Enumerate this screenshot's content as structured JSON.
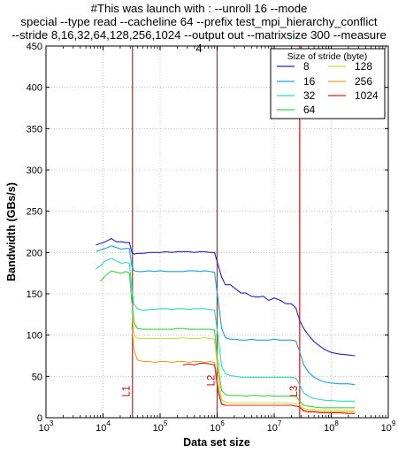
{
  "chart_data": {
    "type": "line",
    "title_lines": [
      "#This was launch with : --unroll 16 --mode",
      "special --type read --cacheline 64 --prefix test_mpi_hierarchy_conflict",
      "--stride 8,16,32,64,128,256,1024 --output out --matrixsize 300 --measure",
      "4"
    ],
    "xlabel": "Data set size",
    "ylabel": "Bandwidth (GBs/s)",
    "xscale": "log",
    "xlim": [
      1000,
      1000000000
    ],
    "ylim": [
      0,
      450
    ],
    "x_tick_exponents": [
      "3",
      "4",
      "5",
      "6",
      "7",
      "8",
      "9"
    ],
    "y_ticks": [
      "0",
      "50",
      "100",
      "150",
      "200",
      "250",
      "300",
      "350",
      "400",
      "450"
    ],
    "grid": true,
    "legend_title": "Size of stride (byte)",
    "legend_position": "top-right",
    "cache_lines": [
      {
        "label": "L1",
        "x": 32768
      },
      {
        "label": "L2",
        "x": 1000000
      },
      {
        "label": "L3",
        "x": 28000000
      }
    ],
    "series": [
      {
        "name": "8",
        "color": "#2222cc",
        "x": [
          7500,
          9000,
          11000,
          14000,
          17000,
          21000,
          25000,
          29000,
          32000,
          35000,
          40000,
          50000,
          65000,
          80000,
          100000,
          130000,
          160000,
          200000,
          250000,
          320000,
          400000,
          500000,
          600000,
          750000,
          900000,
          1050000,
          1200000,
          1400000,
          1700000,
          2100000,
          2600000,
          3200000,
          4000000,
          5000000,
          6500000,
          8000000,
          10000000,
          13000000,
          16000000,
          20000000,
          24000000,
          28000000,
          33000000,
          40000000,
          50000000,
          65000000,
          80000000,
          100000000,
          140000000,
          200000000,
          260000000
        ],
        "y": [
          209,
          211,
          213,
          217,
          213,
          213,
          212,
          212,
          200,
          198,
          199,
          199,
          200,
          200,
          200,
          201,
          200,
          201,
          201,
          201,
          200,
          201,
          201,
          200,
          200,
          184,
          170,
          161,
          161,
          156,
          151,
          151,
          147,
          146,
          147,
          142,
          145,
          142,
          138,
          138,
          133,
          118,
          108,
          100,
          92,
          86,
          82,
          79,
          77,
          76,
          75
        ]
      },
      {
        "name": "16",
        "color": "#1ea0e0",
        "x": [
          7500,
          9000,
          11000,
          14000,
          17000,
          21000,
          25000,
          29000,
          32000,
          35000,
          40000,
          50000,
          65000,
          80000,
          100000,
          130000,
          160000,
          200000,
          250000,
          320000,
          400000,
          500000,
          600000,
          750000,
          900000,
          1050000,
          1200000,
          1400000,
          1700000,
          2100000,
          2600000,
          3200000,
          4000000,
          5000000,
          6500000,
          8000000,
          10000000,
          13000000,
          16000000,
          20000000,
          24000000,
          28000000,
          33000000,
          40000000,
          50000000,
          65000000,
          80000000,
          100000000,
          140000000,
          200000000,
          260000000
        ],
        "y": [
          201,
          203,
          205,
          208,
          206,
          204,
          205,
          205,
          183,
          178,
          177,
          177,
          178,
          177,
          178,
          177,
          177,
          177,
          177,
          178,
          178,
          177,
          178,
          177,
          176,
          140,
          108,
          97,
          95,
          95,
          94,
          94,
          95,
          94,
          94,
          94,
          95,
          94,
          94,
          94,
          93,
          80,
          64,
          55,
          49,
          45,
          43,
          42,
          41,
          41,
          40
        ]
      },
      {
        "name": "32",
        "color": "#2ee0b0",
        "x": [
          7500,
          9000,
          11000,
          14000,
          17000,
          21000,
          25000,
          29000,
          32000,
          35000,
          40000,
          50000,
          65000,
          80000,
          100000,
          130000,
          160000,
          200000,
          250000,
          320000,
          400000,
          500000,
          600000,
          750000,
          900000,
          1050000,
          1200000,
          1400000,
          1700000,
          2100000,
          2600000,
          3200000,
          4000000,
          5000000,
          6500000,
          8000000,
          10000000,
          13000000,
          16000000,
          20000000,
          24000000,
          28000000,
          33000000,
          40000000,
          50000000,
          65000000,
          80000000,
          100000000,
          140000000,
          200000000,
          260000000
        ],
        "y": [
          180,
          184,
          190,
          193,
          190,
          187,
          188,
          187,
          155,
          137,
          132,
          130,
          131,
          131,
          132,
          132,
          131,
          132,
          132,
          131,
          132,
          132,
          132,
          131,
          130,
          95,
          62,
          53,
          51,
          50,
          49,
          49,
          49,
          49,
          49,
          49,
          49,
          49,
          49,
          49,
          48,
          40,
          30,
          26,
          23,
          22,
          21,
          21,
          20,
          20,
          20
        ]
      },
      {
        "name": "64",
        "color": "#3cd43c",
        "x": [
          9000,
          11000,
          14000,
          17000,
          21000,
          25000,
          29000,
          32000,
          35000,
          40000,
          50000,
          65000,
          80000,
          100000,
          130000,
          160000,
          200000,
          250000,
          320000,
          400000,
          500000,
          600000,
          750000,
          900000,
          1050000,
          1200000,
          1400000,
          1700000,
          2100000,
          2600000,
          3200000,
          4000000,
          5000000,
          6500000,
          8000000,
          10000000,
          13000000,
          16000000,
          20000000,
          24000000,
          28000000,
          33000000,
          40000000,
          50000000,
          65000000,
          80000000,
          100000000,
          140000000,
          200000000,
          260000000
        ],
        "y": [
          165,
          172,
          178,
          176,
          175,
          177,
          175,
          140,
          115,
          108,
          107,
          107,
          107,
          107,
          107,
          107,
          108,
          108,
          107,
          107,
          107,
          107,
          107,
          106,
          60,
          33,
          28,
          27,
          27,
          27,
          26,
          27,
          27,
          26,
          27,
          26,
          26,
          26,
          26,
          26,
          20,
          15,
          14,
          13,
          12,
          12,
          12,
          12,
          12,
          12
        ]
      },
      {
        "name": "128",
        "color": "#c8e040",
        "x": [
          32000,
          35000,
          40000,
          50000,
          65000,
          80000,
          100000,
          130000,
          160000,
          200000,
          250000,
          320000,
          400000,
          500000,
          600000,
          750000,
          900000,
          1050000,
          1200000,
          1400000,
          1700000,
          2100000,
          2600000,
          3200000,
          4000000,
          5000000,
          6500000,
          8000000,
          10000000,
          13000000,
          16000000,
          20000000,
          24000000,
          28000000,
          33000000,
          40000000,
          50000000,
          65000000,
          80000000,
          100000000,
          140000000,
          200000000,
          260000000
        ],
        "y": [
          130,
          100,
          96,
          96,
          96,
          96,
          96,
          96,
          96,
          96,
          97,
          96,
          96,
          96,
          97,
          96,
          95,
          50,
          22,
          19,
          18,
          18,
          18,
          18,
          18,
          18,
          18,
          18,
          18,
          18,
          18,
          17,
          17,
          16,
          11,
          10,
          10,
          9,
          9,
          9,
          9,
          9,
          9
        ]
      },
      {
        "name": "256",
        "color": "#e8a020",
        "x": [
          32000,
          35000,
          40000,
          50000,
          65000,
          80000,
          100000,
          130000,
          160000,
          200000,
          250000,
          320000,
          400000,
          500000,
          600000,
          750000,
          900000,
          1050000,
          1200000,
          1400000,
          1700000,
          2100000,
          2600000,
          3200000,
          4000000,
          5000000,
          6500000,
          8000000,
          10000000,
          13000000,
          16000000,
          20000000,
          24000000,
          28000000,
          33000000,
          40000000,
          50000000,
          65000000,
          80000000,
          100000000,
          140000000,
          200000000,
          260000000
        ],
        "y": [
          110,
          82,
          70,
          68,
          68,
          67,
          68,
          68,
          67,
          68,
          68,
          67,
          68,
          68,
          67,
          68,
          67,
          35,
          17,
          15,
          15,
          15,
          15,
          15,
          15,
          15,
          15,
          15,
          15,
          15,
          15,
          15,
          14,
          13,
          9,
          8,
          8,
          7,
          7,
          7,
          7,
          7,
          7
        ]
      },
      {
        "name": "1024",
        "color": "#dd2222",
        "x": [
          250000,
          320000,
          400000,
          500000,
          600000,
          750000,
          900000,
          1050000,
          1200000,
          1400000,
          1700000,
          2100000,
          2600000,
          3200000,
          4000000,
          5000000,
          6500000,
          8000000,
          10000000,
          13000000,
          16000000,
          20000000,
          24000000,
          28000000,
          33000000,
          40000000,
          50000000,
          65000000,
          80000000,
          100000000,
          140000000,
          200000000,
          260000000
        ],
        "y": [
          64,
          65,
          64,
          66,
          66,
          65,
          64,
          30,
          16,
          15,
          15,
          15,
          15,
          15,
          15,
          15,
          15,
          15,
          15,
          15,
          15,
          15,
          14,
          13,
          8,
          7,
          7,
          6,
          6,
          6,
          6,
          5,
          5
        ]
      }
    ]
  }
}
